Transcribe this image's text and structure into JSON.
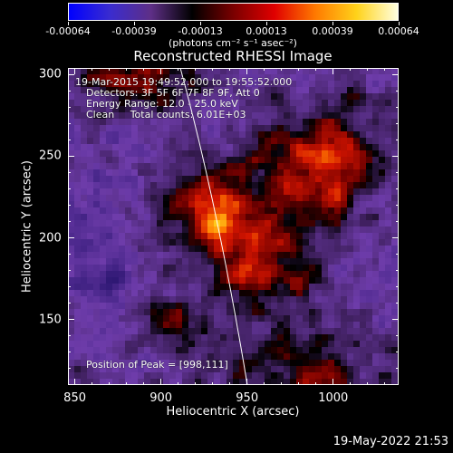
{
  "colorbar": {
    "tick_labels": [
      "-0.00064",
      "-0.00039",
      "-0.00013",
      "0.00013",
      "0.00039",
      "0.00064"
    ],
    "units": "(photons cm⁻² s⁻¹ asec⁻²)",
    "colors": [
      "#0000ff",
      "#3a2ccf",
      "#5e2f86",
      "#000000",
      "#7a0000",
      "#e00000",
      "#ff7a00",
      "#ffd21a",
      "#ffffe0"
    ]
  },
  "chart_data": {
    "type": "heatmap",
    "title": "Reconstructed RHESSI Image",
    "xlabel": "Heliocentric X (arcsec)",
    "ylabel": "Heliocentric Y (arcsec)",
    "xlim": [
      846,
      1038
    ],
    "ylim": [
      110,
      304
    ],
    "x_ticks": [
      850,
      900,
      950,
      1000
    ],
    "y_ticks": [
      150,
      200,
      250,
      300
    ],
    "x_tick_labels": [
      "850",
      "900",
      "950",
      "1000"
    ],
    "y_tick_labels": [
      "150",
      "200",
      "250",
      "300"
    ],
    "value_range": [
      -0.00064,
      0.00064
    ],
    "peak": [
      998,
      111
    ]
  },
  "annotations": {
    "time_range": "19-Mar-2015 19:49:52.000 to 19:55:52.000",
    "detectors": "Detectors: 3F 5F 6F 7F 8F 9F, Att 0",
    "energy": "Energy Range: 12.0 - 25.0 keV",
    "method": "Clean     Total counts: 6.01E+03",
    "peak": "Position of Peak = [998,111]"
  },
  "timestamp": "19-May-2022 21:53"
}
